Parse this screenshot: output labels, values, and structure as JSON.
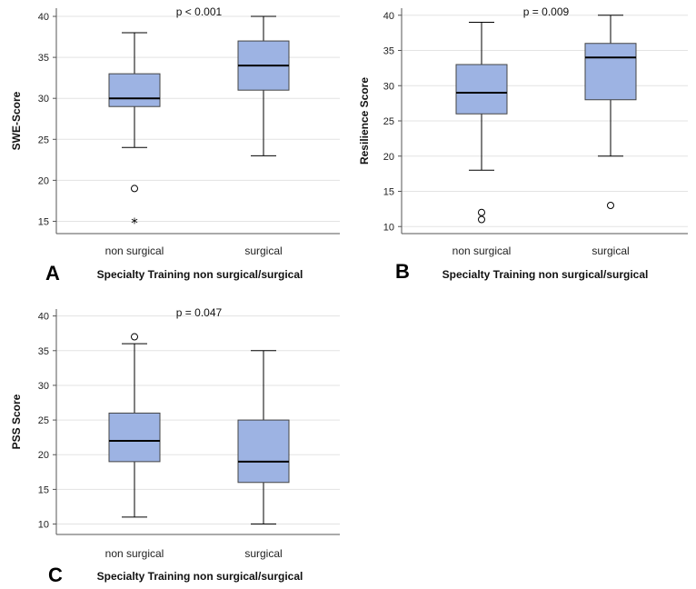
{
  "colors": {
    "box_fill": "#9db3e3",
    "box_stroke": "#444444",
    "median": "#000000",
    "grid": "#e3e3e3",
    "axis": "#555555"
  },
  "chart_data": [
    {
      "type": "boxplot",
      "panel_letter": "A",
      "annotation": "p < 0.001",
      "xlabel": "Specialty Training non surgical/surgical",
      "ylabel": "SWE-Score",
      "ylim": [
        13.5,
        41
      ],
      "yticks": [
        15,
        20,
        25,
        30,
        35,
        40
      ],
      "grid": true,
      "categories": [
        "non surgical",
        "surgical"
      ],
      "boxes": [
        {
          "min": 24,
          "q1": 29,
          "median": 30,
          "q3": 33,
          "max": 38,
          "outliers": [
            {
              "value": 19,
              "marker": "circle"
            },
            {
              "value": 15,
              "marker": "star"
            }
          ]
        },
        {
          "min": 23,
          "q1": 31,
          "median": 34,
          "q3": 37,
          "max": 40,
          "outliers": []
        }
      ]
    },
    {
      "type": "boxplot",
      "panel_letter": "B",
      "annotation": "p = 0.009",
      "xlabel": "Specialty Training non surgical/surgical",
      "ylabel": "Resilience Score",
      "ylim": [
        9,
        41
      ],
      "yticks": [
        10,
        15,
        20,
        25,
        30,
        35,
        40
      ],
      "grid": true,
      "categories": [
        "non surgical",
        "surgical"
      ],
      "boxes": [
        {
          "min": 18,
          "q1": 26,
          "median": 29,
          "q3": 33,
          "max": 39,
          "outliers": [
            {
              "value": 12,
              "marker": "circle"
            },
            {
              "value": 11,
              "marker": "circle"
            }
          ]
        },
        {
          "min": 20,
          "q1": 28,
          "median": 34,
          "q3": 36,
          "max": 40,
          "outliers": [
            {
              "value": 13,
              "marker": "circle"
            }
          ]
        }
      ]
    },
    {
      "type": "boxplot",
      "panel_letter": "C",
      "annotation": "p = 0.047",
      "xlabel": "Specialty Training non surgical/surgical",
      "ylabel": "PSS Score",
      "ylim": [
        8.5,
        41
      ],
      "yticks": [
        10,
        15,
        20,
        25,
        30,
        35,
        40
      ],
      "grid": true,
      "categories": [
        "non surgical",
        "surgical"
      ],
      "boxes": [
        {
          "min": 11,
          "q1": 19,
          "median": 22,
          "q3": 26,
          "max": 36,
          "outliers": [
            {
              "value": 37,
              "marker": "circle"
            }
          ]
        },
        {
          "min": 10,
          "q1": 16,
          "median": 19,
          "q3": 25,
          "max": 35,
          "outliers": []
        }
      ]
    }
  ]
}
